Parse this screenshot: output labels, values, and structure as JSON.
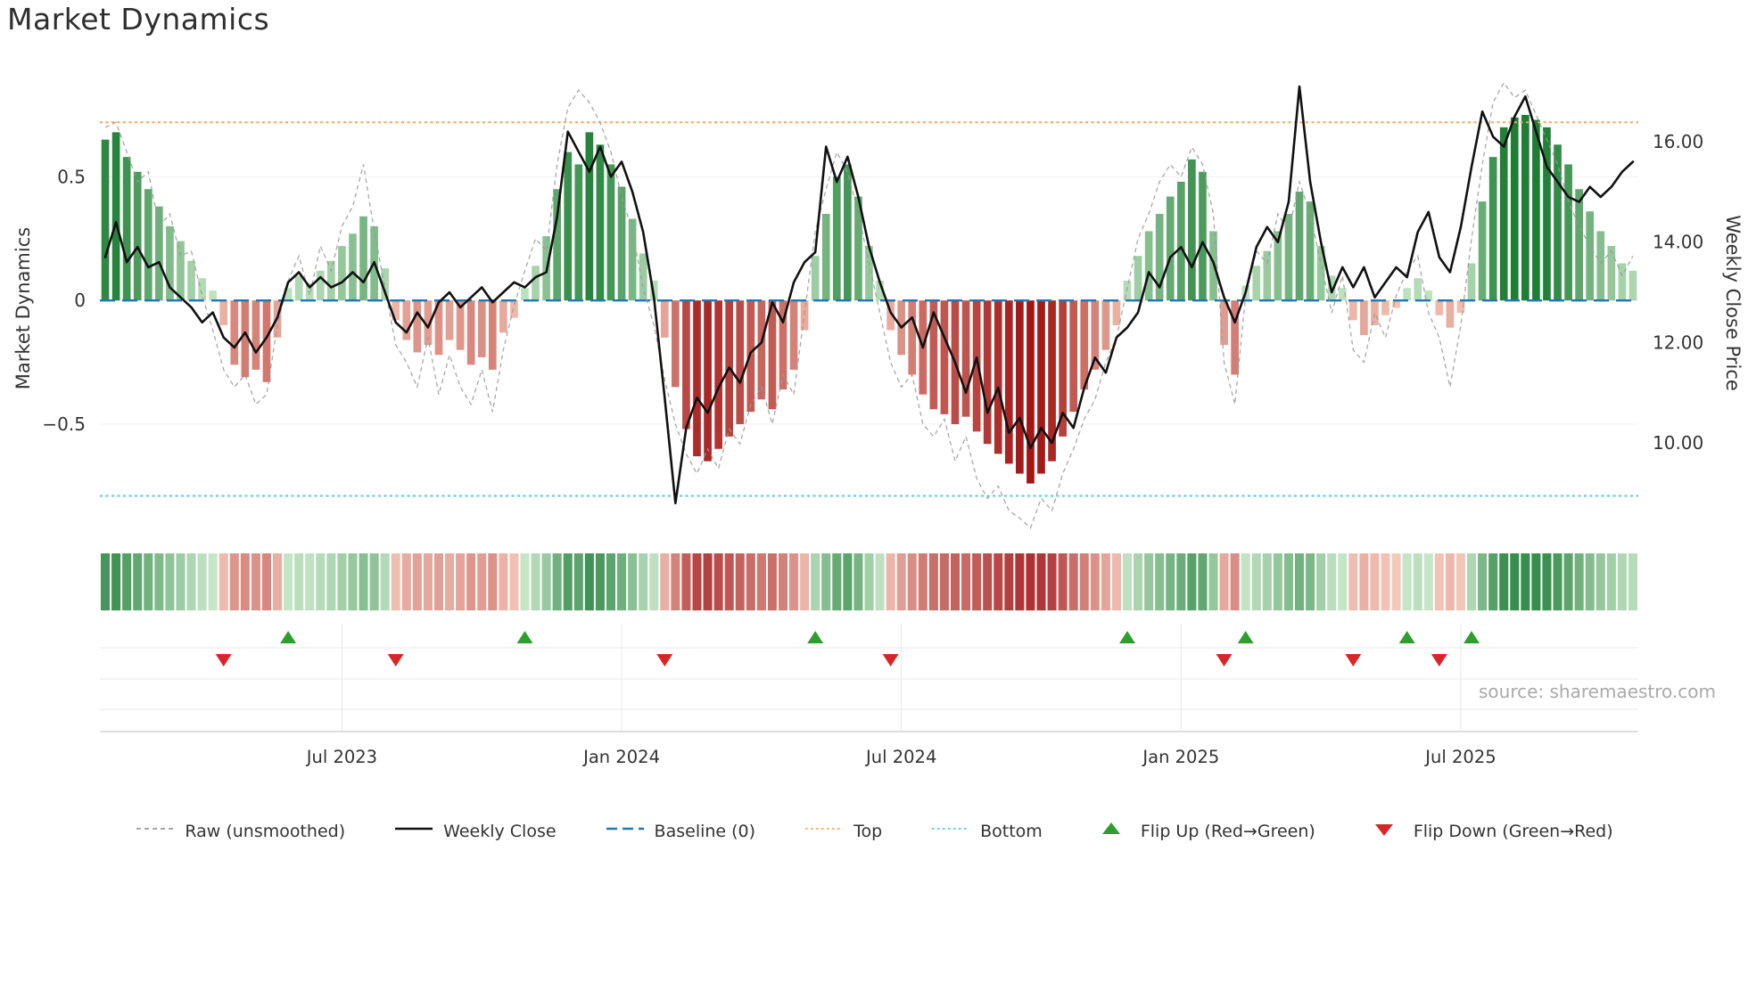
{
  "title": "Market Dynamics",
  "source": "source: sharemaestro.com",
  "y_left_axis_label": "Market Dynamics",
  "y_right_axis_label": "Weekly Close Price",
  "colors": {
    "bar_positive_strong": "#1d7e34",
    "bar_positive_weak": "#c8e8c8",
    "bar_negative_strong": "#a21515",
    "bar_negative_weak": "#f6c9b9",
    "raw_line": "#999999",
    "close_line": "#111111",
    "baseline": "#1f77b4",
    "top_line": "#ffa04d",
    "bottom_line": "#4cc8ec",
    "flip_up": "#2ca02c",
    "flip_down": "#d62728",
    "grid": "#e9e9e9",
    "axis_line": "#c9c9c9",
    "tick_text": "#333333",
    "source_text": "#aaaaaa"
  },
  "legend": {
    "items": [
      {
        "label": "Raw (unsmoothed)",
        "swatch": "dashed-line",
        "color": "#999999"
      },
      {
        "label": "Weekly Close",
        "swatch": "solid-line",
        "color": "#111111"
      },
      {
        "label": "Baseline (0)",
        "swatch": "long-dash-line",
        "color": "#1f77b4"
      },
      {
        "label": "Top",
        "swatch": "dotted-line",
        "color": "#ffa04d"
      },
      {
        "label": "Bottom",
        "swatch": "dotted-line",
        "color": "#4cc8ec"
      },
      {
        "label": "Flip Up (Red→Green)",
        "swatch": "triangle-up",
        "color": "#2ca02c"
      },
      {
        "label": "Flip Down (Green→Red)",
        "swatch": "triangle-down",
        "color": "#d62728"
      }
    ]
  },
  "chart_data": {
    "type": "bar",
    "description": "Weekly market-dynamics oscillator bars (green positive / red negative) with raw unsmoothed dashed line, weekly close price line on right axis, baseline/top/bottom thresholds, color heatmap strip and flip-signal triangle markers.",
    "n_points": 143,
    "x_ticks": {
      "labels": [
        "Jul 2023",
        "Jan 2024",
        "Jul 2024",
        "Jan 2025",
        "Jul 2025"
      ],
      "indices": [
        22,
        48,
        74,
        100,
        126
      ]
    },
    "y_left": {
      "label": "Market Dynamics",
      "ticks": [
        0.5,
        0,
        -0.5
      ],
      "tick_labels": [
        "0.5",
        "0",
        "−0.5"
      ],
      "range": [
        -0.99,
        0.93
      ]
    },
    "y_right": {
      "label": "Weekly Close Price",
      "ticks": [
        16,
        14,
        12,
        10
      ],
      "tick_labels": [
        "16.00",
        "14.00",
        "12.00",
        "10.00"
      ],
      "range": [
        7.96,
        17.42
      ]
    },
    "baseline": 0,
    "top_threshold": 0.72,
    "bottom_threshold": -0.79,
    "flip_up_indices": [
      17,
      39,
      66,
      95,
      106,
      121,
      127
    ],
    "flip_down_indices": [
      11,
      27,
      52,
      73,
      104,
      116,
      124
    ],
    "series": [
      {
        "name": "Market Dynamics (smoothed bars)",
        "type": "bar",
        "axis": "left",
        "values": [
          0.65,
          0.68,
          0.58,
          0.52,
          0.45,
          0.38,
          0.3,
          0.24,
          0.16,
          0.09,
          0.04,
          -0.1,
          -0.26,
          -0.31,
          -0.28,
          -0.33,
          -0.15,
          0.05,
          0.1,
          0.07,
          0.12,
          0.16,
          0.22,
          0.27,
          0.34,
          0.3,
          0.13,
          -0.08,
          -0.16,
          -0.21,
          -0.18,
          -0.22,
          -0.16,
          -0.2,
          -0.26,
          -0.23,
          -0.28,
          -0.13,
          -0.07,
          0.05,
          0.14,
          0.26,
          0.45,
          0.6,
          0.55,
          0.68,
          0.63,
          0.55,
          0.46,
          0.33,
          0.19,
          0.08,
          -0.15,
          -0.35,
          -0.52,
          -0.63,
          -0.65,
          -0.6,
          -0.55,
          -0.5,
          -0.45,
          -0.4,
          -0.44,
          -0.36,
          -0.28,
          -0.12,
          0.18,
          0.35,
          0.5,
          0.55,
          0.42,
          0.22,
          0.08,
          -0.12,
          -0.22,
          -0.3,
          -0.38,
          -0.44,
          -0.46,
          -0.5,
          -0.47,
          -0.53,
          -0.58,
          -0.62,
          -0.66,
          -0.7,
          -0.74,
          -0.7,
          -0.65,
          -0.55,
          -0.45,
          -0.36,
          -0.28,
          -0.2,
          -0.1,
          0.08,
          0.18,
          0.28,
          0.35,
          0.42,
          0.48,
          0.57,
          0.52,
          0.28,
          -0.18,
          -0.3,
          0.06,
          0.14,
          0.2,
          0.28,
          0.35,
          0.44,
          0.4,
          0.22,
          0.1,
          0.05,
          -0.08,
          -0.14,
          -0.1,
          -0.06,
          -0.03,
          0.05,
          0.09,
          0.04,
          -0.06,
          -0.11,
          -0.05,
          0.15,
          0.4,
          0.58,
          0.7,
          0.74,
          0.75,
          0.73,
          0.7,
          0.63,
          0.55,
          0.45,
          0.36,
          0.28,
          0.22,
          0.15,
          0.12
        ]
      },
      {
        "name": "Raw (unsmoothed)",
        "type": "line",
        "style": "dashed",
        "axis": "left",
        "values": [
          0.7,
          0.72,
          0.6,
          0.48,
          0.52,
          0.3,
          0.35,
          0.18,
          0.2,
          0.02,
          -0.12,
          -0.28,
          -0.35,
          -0.3,
          -0.42,
          -0.38,
          -0.1,
          0.08,
          0.18,
          0.02,
          0.22,
          0.12,
          0.3,
          0.38,
          0.55,
          0.28,
          0.05,
          -0.18,
          -0.25,
          -0.35,
          -0.15,
          -0.38,
          -0.22,
          -0.35,
          -0.42,
          -0.28,
          -0.45,
          -0.2,
          -0.02,
          0.12,
          0.25,
          0.2,
          0.55,
          0.78,
          0.85,
          0.8,
          0.72,
          0.6,
          0.42,
          0.28,
          0.05,
          -0.1,
          -0.32,
          -0.5,
          -0.62,
          -0.7,
          -0.6,
          -0.68,
          -0.52,
          -0.58,
          -0.42,
          -0.35,
          -0.5,
          -0.3,
          -0.38,
          -0.05,
          0.28,
          0.45,
          0.6,
          0.52,
          0.35,
          0.15,
          -0.05,
          -0.25,
          -0.35,
          -0.3,
          -0.5,
          -0.55,
          -0.48,
          -0.65,
          -0.55,
          -0.72,
          -0.8,
          -0.75,
          -0.85,
          -0.88,
          -0.92,
          -0.8,
          -0.85,
          -0.7,
          -0.6,
          -0.48,
          -0.4,
          -0.25,
          -0.15,
          0.05,
          0.25,
          0.35,
          0.48,
          0.55,
          0.5,
          0.62,
          0.55,
          0.35,
          -0.25,
          -0.42,
          0.02,
          0.2,
          0.15,
          0.35,
          0.28,
          0.48,
          0.35,
          0.15,
          -0.05,
          0.1,
          -0.2,
          -0.25,
          -0.05,
          -0.15,
          0.02,
          0.12,
          0.18,
          -0.05,
          -0.15,
          -0.35,
          -0.1,
          0.25,
          0.55,
          0.8,
          0.88,
          0.82,
          0.85,
          0.75,
          0.65,
          0.55,
          0.4,
          0.3,
          0.22,
          0.15,
          0.2,
          0.1,
          0.18
        ]
      },
      {
        "name": "Weekly Close",
        "type": "line",
        "axis": "right",
        "values": [
          13.7,
          14.4,
          13.6,
          13.9,
          13.5,
          13.6,
          13.1,
          12.9,
          12.7,
          12.4,
          12.6,
          12.1,
          11.9,
          12.2,
          11.8,
          12.1,
          12.5,
          13.2,
          13.4,
          13.1,
          13.3,
          13.1,
          13.2,
          13.4,
          13.2,
          13.6,
          13.0,
          12.4,
          12.2,
          12.6,
          12.3,
          12.8,
          13.0,
          12.7,
          12.9,
          13.1,
          12.8,
          13.0,
          13.2,
          13.1,
          13.3,
          13.4,
          14.5,
          16.2,
          15.8,
          15.4,
          15.9,
          15.3,
          15.6,
          15.0,
          14.2,
          12.9,
          10.9,
          8.8,
          10.3,
          10.9,
          10.6,
          11.1,
          11.5,
          11.2,
          11.8,
          12.0,
          12.8,
          12.4,
          13.2,
          13.6,
          13.8,
          15.9,
          15.2,
          15.7,
          14.9,
          13.9,
          13.2,
          12.6,
          12.3,
          12.5,
          11.9,
          12.6,
          12.1,
          11.6,
          11.0,
          11.7,
          10.6,
          11.1,
          10.2,
          10.5,
          9.9,
          10.3,
          10.0,
          10.6,
          10.3,
          11.1,
          11.7,
          11.4,
          12.1,
          12.3,
          12.6,
          13.4,
          13.1,
          13.7,
          13.9,
          13.5,
          14.0,
          13.6,
          12.9,
          12.4,
          13.0,
          13.9,
          14.3,
          14.0,
          14.8,
          17.1,
          15.2,
          14.0,
          13.0,
          13.5,
          13.1,
          13.5,
          12.9,
          13.2,
          13.5,
          13.3,
          14.2,
          14.6,
          13.7,
          13.4,
          14.3,
          15.5,
          16.6,
          16.1,
          15.9,
          16.5,
          16.9,
          16.2,
          15.5,
          15.2,
          14.9,
          14.8,
          15.1,
          14.9,
          15.1,
          15.4,
          15.6
        ]
      }
    ],
    "heatmap_strip": {
      "mirrors": "Market Dynamics (smoothed bars)",
      "palette": "green positive / red negative, intensity by magnitude"
    }
  }
}
